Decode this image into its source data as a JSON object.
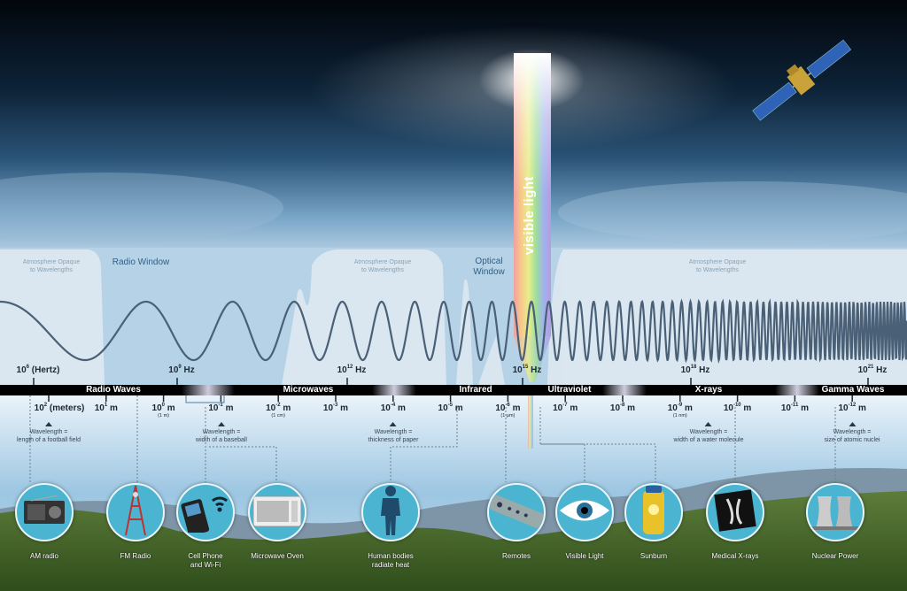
{
  "colors": {
    "sky_top": "#02060c",
    "sky_mid": "#1b3d5e",
    "band_bar": "#000000",
    "icon_circle": "#4bb4d0",
    "wave": "#4a6076"
  },
  "top": {
    "atmosphere_opaque": [
      "Atmosphere Opaque",
      "to Wavelengths"
    ],
    "radio_window": "Radio Window",
    "optical_window": [
      "Optical",
      "Window"
    ],
    "visible_light": "visible light"
  },
  "frequencies": [
    {
      "base": "10",
      "exp": "6",
      "unit": "(Hertz)"
    },
    {
      "base": "10",
      "exp": "9",
      "unit": "Hz"
    },
    {
      "base": "10",
      "exp": "12",
      "unit": "Hz"
    },
    {
      "base": "10",
      "exp": "15",
      "unit": "Hz"
    },
    {
      "base": "10",
      "exp": "18",
      "unit": "Hz"
    },
    {
      "base": "10",
      "exp": "21",
      "unit": "Hz"
    }
  ],
  "bands": [
    "Radio Waves",
    "Microwaves",
    "Infrared",
    "Ultraviolet",
    "X-rays",
    "Gamma Waves"
  ],
  "wavelengths": [
    {
      "base": "10",
      "exp": "2",
      "unit": "(meters)"
    },
    {
      "base": "10",
      "exp": "1",
      "unit": "m"
    },
    {
      "base": "10",
      "exp": "0",
      "unit": "m",
      "note": "(1 m)"
    },
    {
      "base": "10",
      "exp": "-1",
      "unit": "m"
    },
    {
      "base": "10",
      "exp": "-2",
      "unit": "m",
      "note": "(1 cm)"
    },
    {
      "base": "10",
      "exp": "-3",
      "unit": "m"
    },
    {
      "base": "10",
      "exp": "-4",
      "unit": "m"
    },
    {
      "base": "10",
      "exp": "-5",
      "unit": "m"
    },
    {
      "base": "10",
      "exp": "-6",
      "unit": "m",
      "note": "(1 μm)"
    },
    {
      "base": "10",
      "exp": "-7",
      "unit": "m"
    },
    {
      "base": "10",
      "exp": "-8",
      "unit": "m"
    },
    {
      "base": "10",
      "exp": "-9",
      "unit": "m",
      "note": "(1 nm)"
    },
    {
      "base": "10",
      "exp": "-10",
      "unit": "m"
    },
    {
      "base": "10",
      "exp": "-11",
      "unit": "m"
    },
    {
      "base": "10",
      "exp": "-12",
      "unit": "m"
    }
  ],
  "comparisons": [
    {
      "line1": "Wavelength =",
      "line2": "length of a football field"
    },
    {
      "line1": "Wavelength =",
      "line2": "width of a baseball"
    },
    {
      "line1": "Wavelength =",
      "line2": "thickness of paper"
    },
    {
      "line1": "Wavelength =",
      "line2": "width of a water molecule"
    },
    {
      "line1": "Wavelength =",
      "line2": "size of atomic nuclei"
    }
  ],
  "examples": [
    {
      "label": "AM radio",
      "icon": "radio-icon"
    },
    {
      "label": "FM Radio",
      "icon": "radio-tower-icon"
    },
    {
      "label": "Cell Phone",
      "label2": "and Wi-Fi",
      "icon": "cell-phone-icon"
    },
    {
      "label": "Microwave Oven",
      "icon": "microwave-oven-icon"
    },
    {
      "label": "Human bodies",
      "label2": "radiate heat",
      "icon": "human-silhouette-icon"
    },
    {
      "label": "Remotes",
      "icon": "remote-control-icon"
    },
    {
      "label": "Visible Light",
      "icon": "eye-icon"
    },
    {
      "label": "Sunburn",
      "icon": "sunscreen-bottle-icon"
    },
    {
      "label": "Medical X-rays",
      "icon": "x-ray-image-icon"
    },
    {
      "label": "Nuclear Power",
      "icon": "cooling-tower-icon"
    }
  ]
}
